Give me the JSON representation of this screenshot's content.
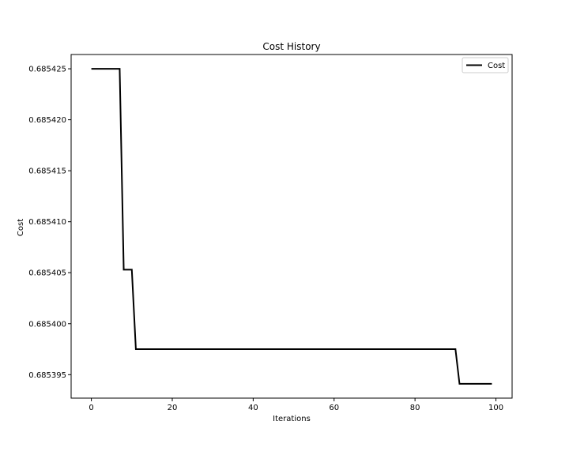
{
  "chart_data": {
    "type": "line",
    "title": "Cost History",
    "xlabel": "Iterations",
    "ylabel": "Cost",
    "xlim": [
      -5,
      104
    ],
    "ylim": [
      0.6853927,
      0.6854264
    ],
    "xticks": [
      0,
      20,
      40,
      60,
      80,
      100
    ],
    "xtick_labels": [
      "0",
      "20",
      "40",
      "60",
      "80",
      "100"
    ],
    "yticks": [
      0.685395,
      0.6854,
      0.685405,
      0.68541,
      0.685415,
      0.68542,
      0.685425
    ],
    "ytick_labels": [
      "0.685395",
      "0.685400",
      "0.685405",
      "0.685410",
      "0.685415",
      "0.685420",
      "0.685425"
    ],
    "grid": false,
    "legend_position": "top-right",
    "line_color": "#000000",
    "series": [
      {
        "name": "Cost",
        "x": [
          0,
          7,
          8,
          10,
          11,
          90,
          91,
          99
        ],
        "y": [
          0.685425,
          0.685425,
          0.6854053,
          0.6854053,
          0.6853975,
          0.6853975,
          0.6853941,
          0.6853941
        ]
      }
    ]
  }
}
